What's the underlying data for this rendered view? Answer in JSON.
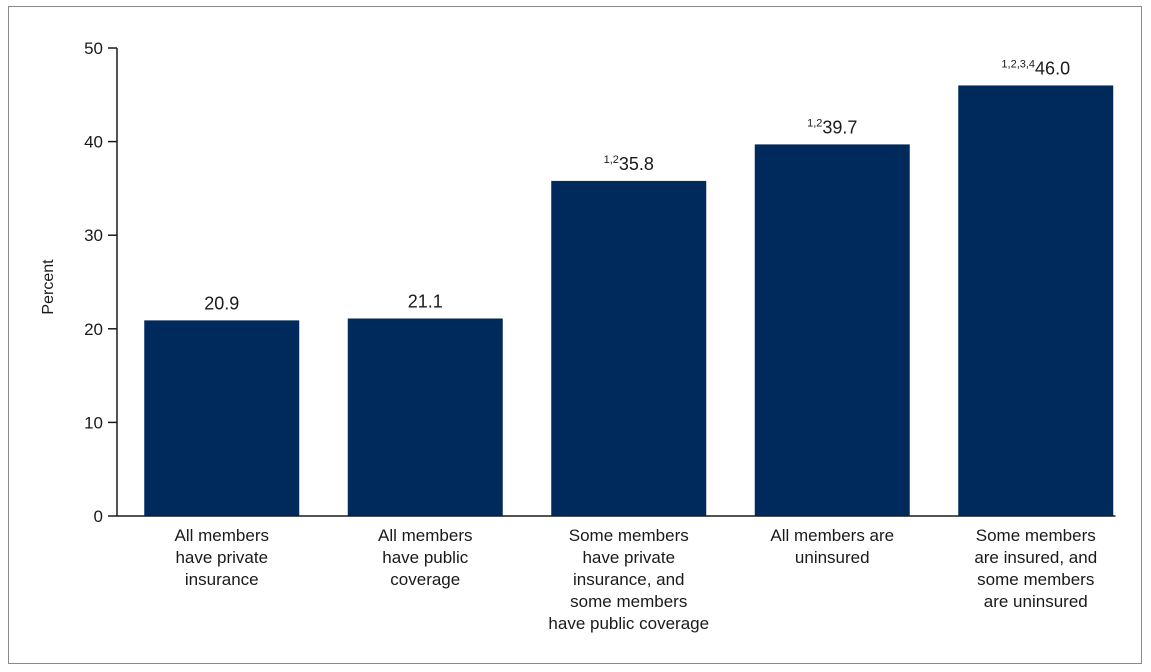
{
  "chart_data": {
    "type": "bar",
    "ylabel": "Percent",
    "ylim": [
      0,
      50
    ],
    "yticks": [
      0,
      10,
      20,
      30,
      40,
      50
    ],
    "grid": false,
    "bar_color": "#002a5c",
    "categories": [
      [
        "All members",
        "have private",
        "insurance"
      ],
      [
        "All members",
        "have public",
        "coverage"
      ],
      [
        "Some members",
        "have private",
        "insurance, and",
        "some members",
        "have public coverage"
      ],
      [
        "All members are",
        "uninsured"
      ],
      [
        "Some members",
        "are insured, and",
        "some members",
        "are uninsured"
      ]
    ],
    "values": [
      20.9,
      21.1,
      35.8,
      39.7,
      46.0
    ],
    "value_labels": [
      "20.9",
      "21.1",
      "35.8",
      "39.7",
      "46.0"
    ],
    "value_footnotes": [
      "",
      "",
      "1,2",
      "1,2",
      "1,2,3,4"
    ]
  }
}
